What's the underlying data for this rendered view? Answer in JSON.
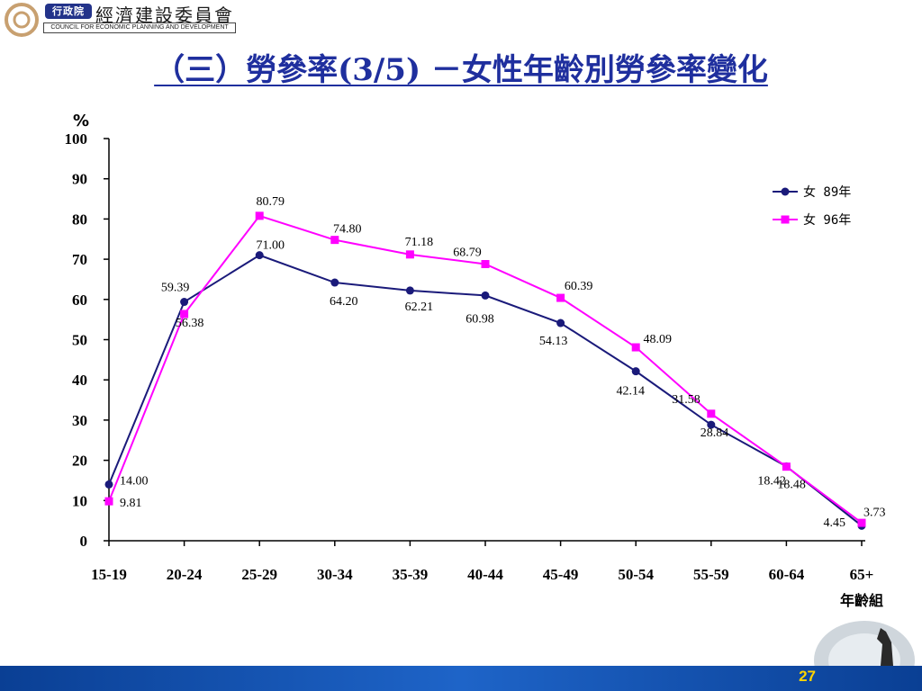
{
  "header": {
    "badge": "行政院",
    "org_cn": "經濟建設委員會",
    "org_en": "COUNCIL FOR ECONOMIC PLANNING AND DEVELOPMENT"
  },
  "slide": {
    "title": "（三）勞參率(3/5) －女性年齡別勞參率變化",
    "page_number": "27"
  },
  "colors": {
    "series_89": "#1a1a7a",
    "series_96": "#ff00ff",
    "title": "#1f2f9e",
    "footer": "#1e64c8"
  },
  "chart_data": {
    "type": "line",
    "ylabel": "%",
    "xlabel": "年齡組",
    "ylim": [
      0,
      100
    ],
    "yticks": [
      0,
      10,
      20,
      30,
      40,
      50,
      60,
      70,
      80,
      90,
      100
    ],
    "categories": [
      "15-19",
      "20-24",
      "25-29",
      "30-34",
      "35-39",
      "40-44",
      "45-49",
      "50-54",
      "55-59",
      "60-64",
      "65+"
    ],
    "legend_position": "right",
    "grid": false,
    "series": [
      {
        "name": "女 89年",
        "marker": "circle",
        "values": [
          14.0,
          59.39,
          71.0,
          64.2,
          62.21,
          60.98,
          54.13,
          42.14,
          28.84,
          18.48,
          3.73
        ],
        "labels": [
          "14.00",
          "59.39",
          "71.00",
          "64.20",
          "62.21",
          "60.98",
          "54.13",
          "42.14",
          "28.84",
          "18.48",
          "3.73"
        ]
      },
      {
        "name": "女 96年",
        "marker": "square",
        "values": [
          9.81,
          56.38,
          80.79,
          74.8,
          71.18,
          68.79,
          60.39,
          48.09,
          31.58,
          18.42,
          4.45
        ],
        "labels": [
          "9.81",
          "56.38",
          "80.79",
          "74.80",
          "71.18",
          "68.79",
          "60.39",
          "48.09",
          "31.58",
          "18.42",
          "4.45"
        ]
      }
    ]
  }
}
